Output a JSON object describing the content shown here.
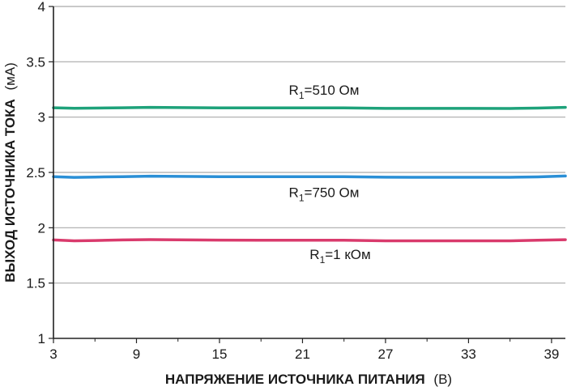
{
  "chart_data": {
    "type": "line",
    "xlabel": "НАПРЯЖЕНИЕ ИСТОЧНИКА ПИТАНИЯ",
    "xlabel_unit": "(В)",
    "ylabel": "ВЫХОД ИСТОЧНИКА ТОКА",
    "ylabel_unit": "(мА)",
    "xlim": [
      3,
      40
    ],
    "ylim": [
      1,
      4
    ],
    "xticks": [
      "3",
      "9",
      "15",
      "21",
      "27",
      "33",
      "39"
    ],
    "yticks": [
      "1",
      "1.5",
      "2",
      "2.5",
      "3",
      "3.5",
      "4"
    ],
    "grid": "horizontal",
    "x": [
      3,
      4.5,
      6,
      8,
      10,
      12,
      15,
      18,
      21,
      24,
      27,
      30,
      33,
      36,
      38,
      40
    ],
    "series": [
      {
        "name": "R1=510 Ом",
        "label_main": "R",
        "label_sub": "1",
        "label_rest": "=510 Ом",
        "color": "#1ea27a",
        "values": [
          3.085,
          3.08,
          3.082,
          3.085,
          3.088,
          3.086,
          3.084,
          3.084,
          3.084,
          3.084,
          3.079,
          3.079,
          3.079,
          3.078,
          3.082,
          3.088
        ]
      },
      {
        "name": "R1=750 Ом",
        "label_main": "R",
        "label_sub": "1",
        "label_rest": "=750 Ом",
        "color": "#2a8fd6",
        "values": [
          2.462,
          2.455,
          2.458,
          2.462,
          2.466,
          2.464,
          2.462,
          2.461,
          2.461,
          2.461,
          2.457,
          2.456,
          2.456,
          2.456,
          2.46,
          2.468
        ]
      },
      {
        "name": "R1=1 кОм",
        "label_main": "R",
        "label_sub": "1",
        "label_rest": "=1 кОм",
        "color": "#d93a6c",
        "values": [
          1.89,
          1.882,
          1.885,
          1.89,
          1.893,
          1.891,
          1.888,
          1.887,
          1.887,
          1.887,
          1.882,
          1.882,
          1.882,
          1.882,
          1.887,
          1.892
        ]
      }
    ]
  }
}
